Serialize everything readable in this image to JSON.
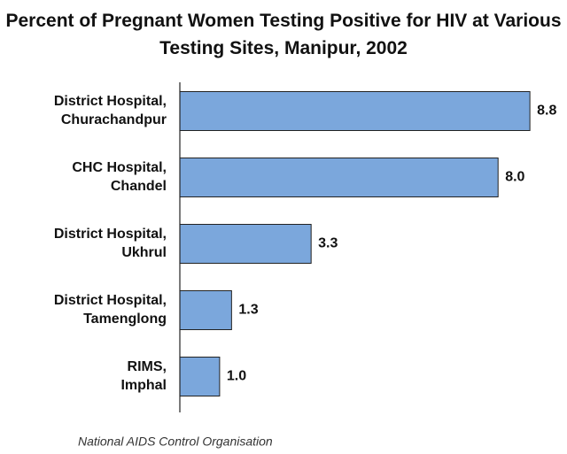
{
  "chart_data": {
    "type": "bar",
    "orientation": "horizontal",
    "title": "Percent of Pregnant Women Testing Positive for HIV at Various Testing Sites, Manipur, 2002",
    "categories": [
      "District Hospital, Churachandpur",
      "CHC Hospital, Chandel",
      "District Hospital, Ukhrul",
      "District Hospital, Tamenglong",
      "RIMS, Imphal"
    ],
    "values": [
      8.8,
      8.0,
      3.3,
      1.3,
      1.0
    ],
    "value_labels": [
      "8.8",
      "8.0",
      "3.3",
      "1.3",
      "1.0"
    ],
    "color": "#7ba7dc",
    "xlim": [
      0,
      10
    ],
    "source": "National AIDS Control Organisation"
  }
}
